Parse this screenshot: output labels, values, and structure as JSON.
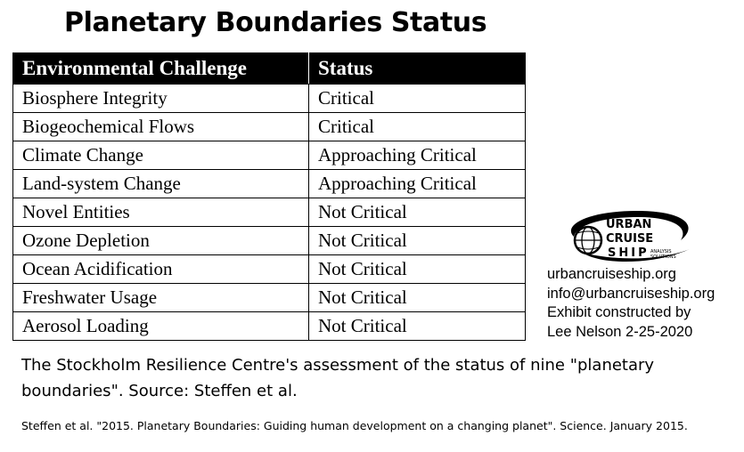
{
  "title": "Planetary Boundaries Status",
  "table": {
    "headers": [
      "Environmental Challenge",
      "Status"
    ],
    "rows": [
      [
        "Biosphere Integrity",
        "Critical"
      ],
      [
        "Biogeochemical Flows",
        "Critical"
      ],
      [
        "Climate Change",
        "Approaching Critical"
      ],
      [
        "Land-system Change",
        "Approaching Critical"
      ],
      [
        "Novel Entities",
        "Not Critical"
      ],
      [
        "Ozone Depletion",
        "Not Critical"
      ],
      [
        "Ocean Acidification",
        "Not Critical"
      ],
      [
        "Freshwater Usage",
        "Not Critical"
      ],
      [
        "Aerosol Loading",
        "Not Critical"
      ]
    ]
  },
  "logo": {
    "word1": "URBAN",
    "word2": "CRUISE",
    "word3": "SHIP",
    "tagline1": "ANALYSIS",
    "tagline2": "SOLUTIONS"
  },
  "contact": {
    "website": "urbancruiseship.org",
    "email": "info@urbancruiseship.org",
    "credit1": "Exhibit constructed by",
    "credit2": "Lee Nelson 2-25-2020"
  },
  "caption": "The Stockholm Resilience Centre's assessment of the status of nine \"planetary boundaries\". Source: Steffen et al.",
  "citation": "Steffen et al. \"2015. Planetary Boundaries: Guiding human development on a changing planet\". Science. January 2015."
}
